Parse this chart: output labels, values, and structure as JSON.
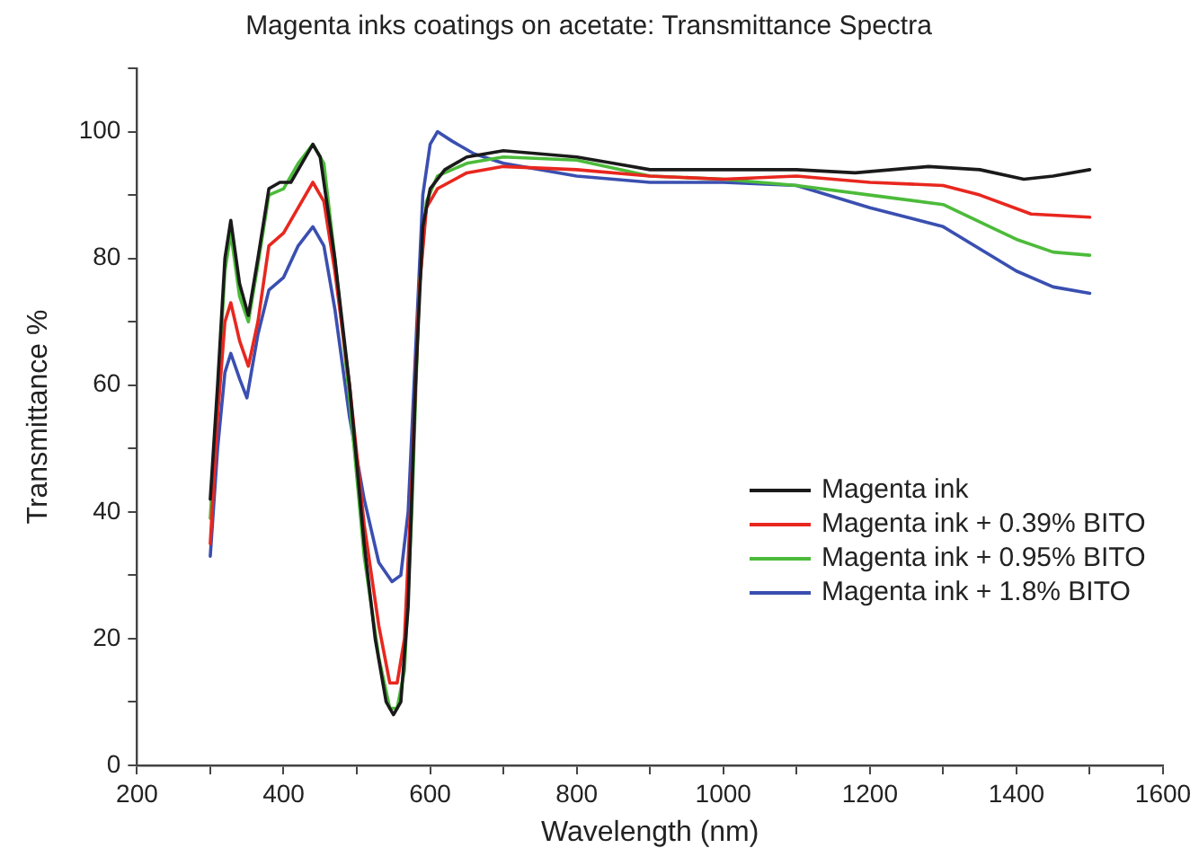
{
  "chart_data": {
    "type": "line",
    "title": "Magenta inks coatings on acetate: Transmittance Spectra",
    "xlabel": "Wavelength (nm)",
    "ylabel": "Transmittance %",
    "xlim": [
      200,
      1600
    ],
    "xticks": [
      200,
      {
        "value": 300,
        "label": null
      },
      400,
      {
        "value": 500,
        "label": null
      },
      600,
      {
        "value": 700,
        "label": null
      },
      800,
      {
        "value": 900,
        "label": null
      },
      1000,
      {
        "value": 1100,
        "label": null
      },
      1200,
      {
        "value": 1300,
        "label": null
      },
      1400,
      {
        "value": 1500,
        "label": null
      },
      1600
    ],
    "ylim": [
      0,
      110
    ],
    "yticks": [
      0,
      {
        "value": 10,
        "label": null
      },
      20,
      {
        "value": 30,
        "label": null
      },
      40,
      {
        "value": 50,
        "label": null
      },
      60,
      {
        "value": 70,
        "label": null
      },
      80,
      {
        "value": 90,
        "label": null
      },
      100,
      {
        "value": 110,
        "label": null
      }
    ],
    "grid": false,
    "legend": "bottom right",
    "marker": "none",
    "line_style": "solid",
    "series": [
      {
        "name": "Magenta ink",
        "color": "#1a1a1a",
        "x": [
          300,
          310,
          320,
          328,
          340,
          352,
          365,
          380,
          395,
          410,
          425,
          440,
          450,
          470,
          490,
          510,
          525,
          540,
          550,
          560,
          570,
          580,
          590,
          600,
          620,
          650,
          700,
          800,
          850,
          900,
          1000,
          1100,
          1180,
          1280,
          1350,
          1410,
          1450,
          1500
        ],
        "values": [
          42,
          60,
          80,
          86,
          76,
          71,
          80,
          91,
          92,
          92,
          95,
          98,
          96,
          80,
          60,
          35,
          20,
          10,
          8,
          10,
          25,
          60,
          85,
          91,
          94,
          96,
          97,
          96,
          95,
          94,
          94,
          94,
          93.5,
          94.5,
          94,
          92.5,
          93,
          94
        ]
      },
      {
        "name": "Magenta ink + 0.39% BITO",
        "color": "#e8271f",
        "x": [
          300,
          310,
          320,
          328,
          340,
          352,
          365,
          380,
          400,
          420,
          440,
          455,
          470,
          490,
          510,
          530,
          545,
          555,
          565,
          575,
          585,
          595,
          610,
          650,
          700,
          800,
          900,
          1000,
          1100,
          1200,
          1300,
          1350,
          1420,
          1500
        ],
        "values": [
          35,
          55,
          70,
          73,
          67,
          63,
          70,
          82,
          84,
          88,
          92,
          89,
          78,
          60,
          38,
          22,
          13,
          13,
          20,
          45,
          75,
          88,
          91,
          93.5,
          94.5,
          94,
          93,
          92.5,
          93,
          92,
          91.5,
          90,
          87,
          86.5
        ]
      },
      {
        "name": "Magenta ink + 0.95% BITO",
        "color": "#4cbb3a",
        "x": [
          300,
          310,
          320,
          328,
          340,
          352,
          365,
          380,
          400,
          420,
          440,
          455,
          470,
          490,
          510,
          530,
          545,
          555,
          565,
          575,
          585,
          595,
          610,
          650,
          700,
          800,
          900,
          1000,
          1100,
          1200,
          1300,
          1400,
          1450,
          1500
        ],
        "values": [
          39,
          58,
          78,
          84,
          74,
          70,
          79,
          90,
          91,
          95,
          98,
          95,
          80,
          58,
          33,
          17,
          9,
          9,
          15,
          40,
          75,
          89,
          93,
          95,
          96,
          95.5,
          93,
          92.5,
          91.5,
          90,
          88.5,
          83,
          81,
          80.5
        ]
      },
      {
        "name": "Magenta ink + 1.8% BITO",
        "color": "#3a4fb0",
        "x": [
          300,
          310,
          320,
          328,
          340,
          350,
          365,
          380,
          400,
          420,
          440,
          455,
          470,
          490,
          510,
          530,
          548,
          560,
          570,
          580,
          590,
          600,
          610,
          630,
          660,
          700,
          800,
          900,
          1000,
          1100,
          1200,
          1300,
          1400,
          1450,
          1500
        ],
        "values": [
          33,
          50,
          62,
          65,
          61,
          58,
          68,
          75,
          77,
          82,
          85,
          82,
          72,
          55,
          42,
          32,
          29,
          30,
          40,
          65,
          90,
          98,
          100,
          98.5,
          96.5,
          95,
          93,
          92,
          92,
          91.5,
          88,
          85,
          78,
          75.5,
          74.5
        ]
      }
    ]
  }
}
